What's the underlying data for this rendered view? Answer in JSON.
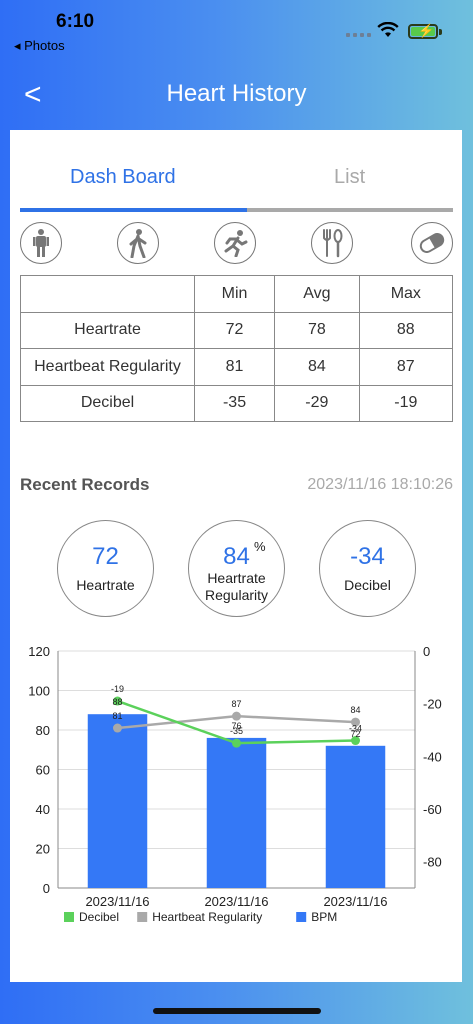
{
  "status_bar": {
    "time": "6:10",
    "back_app": "◂ Photos"
  },
  "nav": {
    "back_symbol": "<",
    "title": "Heart History"
  },
  "tabs": {
    "dashboard": "Dash Board",
    "list": "List"
  },
  "activity_icons": [
    "standing-icon",
    "walking-icon",
    "running-icon",
    "dining-icon",
    "medicine-icon"
  ],
  "stats_table": {
    "headers": [
      "",
      "Min",
      "Avg",
      "Max"
    ],
    "rows": [
      {
        "label": "Heartrate",
        "min": "72",
        "avg": "78",
        "max": "88"
      },
      {
        "label": "Heartbeat Regularity",
        "min": "81",
        "avg": "84",
        "max": "87"
      },
      {
        "label": "Decibel",
        "min": "-35",
        "avg": "-29",
        "max": "-19"
      }
    ]
  },
  "recent": {
    "title": "Recent Records",
    "timestamp": "2023/11/16 18:10:26",
    "heartrate": {
      "value": "72",
      "label": "Heartrate"
    },
    "regularity": {
      "value": "84",
      "unit": "%",
      "label_line1": "Heartrate",
      "label_line2": "Regularity"
    },
    "decibel": {
      "value": "-34",
      "label": "Decibel"
    }
  },
  "colors": {
    "accent": "#2f72e6",
    "decibel": "#5bd15b",
    "regularity": "#a9a9a9",
    "bpm": "#3478f6"
  },
  "chart_data": {
    "type": "bar",
    "categories": [
      "2023/11/16",
      "2023/11/16",
      "2023/11/16"
    ],
    "series": [
      {
        "name": "BPM",
        "type": "bar",
        "axis": "left",
        "values": [
          88,
          76,
          72
        ],
        "labels": [
          "88",
          "76",
          "72"
        ]
      },
      {
        "name": "Heartbeat Regularity",
        "type": "line",
        "axis": "left",
        "values": [
          81,
          87,
          84
        ],
        "labels": [
          "81",
          "87",
          "84"
        ]
      },
      {
        "name": "Decibel",
        "type": "line",
        "axis": "right",
        "values": [
          -19,
          -35,
          -34
        ],
        "labels": [
          "-19",
          "-35",
          "-34"
        ]
      }
    ],
    "ylim_left": [
      0,
      120
    ],
    "yticks_left": [
      "0",
      "20",
      "40",
      "60",
      "80",
      "100",
      "120"
    ],
    "ylim_right": [
      -90,
      0
    ],
    "yticks_right": [
      "0",
      "-20",
      "-40",
      "-60",
      "-80"
    ],
    "legend": [
      "Decibel",
      "Heartbeat Regularity",
      "BPM"
    ],
    "legend_position": "bottom-left",
    "grid": "horizontal"
  }
}
